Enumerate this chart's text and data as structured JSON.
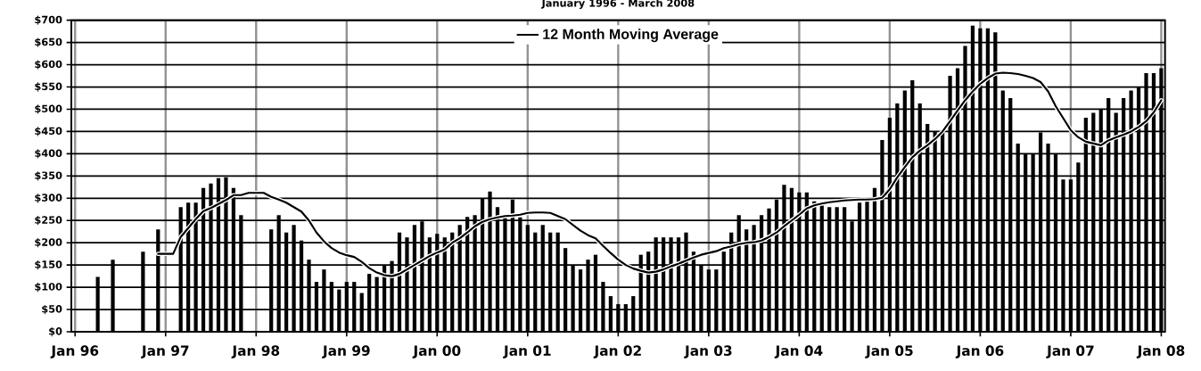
{
  "chart_data": {
    "type": "bar",
    "title": "January 1996 - March 2008",
    "categories": [
      "Jan 96",
      null,
      null,
      null,
      null,
      null,
      null,
      null,
      null,
      null,
      null,
      null,
      "Jan 97",
      null,
      null,
      null,
      null,
      null,
      null,
      null,
      null,
      null,
      null,
      null,
      "Jan 98",
      null,
      null,
      null,
      null,
      null,
      null,
      null,
      null,
      null,
      null,
      null,
      "Jan 99",
      null,
      null,
      null,
      null,
      null,
      null,
      null,
      null,
      null,
      null,
      null,
      "Jan 00",
      null,
      null,
      null,
      null,
      null,
      null,
      null,
      null,
      null,
      null,
      null,
      "Jan 01",
      null,
      null,
      null,
      null,
      null,
      null,
      null,
      null,
      null,
      null,
      null,
      "Jan 02",
      null,
      null,
      null,
      null,
      null,
      null,
      null,
      null,
      null,
      null,
      null,
      "Jan 03",
      null,
      null,
      null,
      null,
      null,
      null,
      null,
      null,
      null,
      null,
      null,
      "Jan 04",
      null,
      null,
      null,
      null,
      null,
      null,
      null,
      null,
      null,
      null,
      null,
      "Jan 05",
      null,
      null,
      null,
      null,
      null,
      null,
      null,
      null,
      null,
      null,
      null,
      "Jan 06",
      null,
      null,
      null,
      null,
      null,
      null,
      null,
      null,
      null,
      null,
      null,
      "Jan 07",
      null,
      null,
      null,
      null,
      null,
      null,
      null,
      null,
      null,
      null,
      null,
      "Jan 08"
    ],
    "series": [
      {
        "color": "#000000",
        "values": [
          null,
          null,
          null,
          123,
          null,
          162,
          null,
          null,
          null,
          180,
          null,
          230,
          null,
          null,
          280,
          290,
          290,
          323,
          333,
          345,
          347,
          323,
          262,
          null,
          null,
          null,
          230,
          262,
          223,
          240,
          205,
          162,
          112,
          140,
          112,
          95,
          112,
          112,
          87,
          130,
          123,
          149,
          159,
          223,
          212,
          240,
          248,
          212,
          220,
          212,
          223,
          240,
          258,
          262,
          300,
          315,
          280,
          262,
          297,
          257,
          240,
          223,
          240,
          223,
          223,
          188,
          150,
          140,
          162,
          173,
          112,
          80,
          62,
          62,
          80,
          173,
          180,
          212,
          212,
          212,
          212,
          223,
          180,
          150,
          140,
          140,
          180,
          223,
          262,
          230,
          240,
          262,
          277,
          297,
          330,
          323,
          313,
          313,
          293,
          290,
          280,
          280,
          280,
          248,
          290,
          295,
          323,
          431,
          481,
          513,
          542,
          565,
          513,
          467,
          450,
          450,
          575,
          592,
          642,
          688,
          682,
          682,
          673,
          542,
          525,
          423,
          400,
          400,
          448,
          423,
          400,
          342,
          342,
          380,
          481,
          492,
          500,
          525,
          492,
          525,
          542,
          550,
          581,
          581,
          592
        ]
      },
      {
        "type": "line",
        "name": "12 Month Moving Average",
        "color": "#000000",
        "values": [
          null,
          null,
          null,
          null,
          null,
          null,
          null,
          null,
          null,
          null,
          null,
          175,
          175,
          175,
          213,
          233,
          253,
          271,
          278,
          287,
          296,
          307,
          307,
          312,
          312,
          312,
          303,
          297,
          290,
          280,
          270,
          250,
          223,
          203,
          188,
          178,
          172,
          168,
          157,
          143,
          133,
          127,
          125,
          130,
          140,
          150,
          160,
          170,
          178,
          185,
          200,
          210,
          223,
          237,
          247,
          253,
          257,
          260,
          261,
          263,
          267,
          268,
          268,
          267,
          260,
          253,
          240,
          227,
          217,
          210,
          193,
          177,
          162,
          150,
          142,
          137,
          133,
          135,
          140,
          147,
          153,
          160,
          167,
          173,
          177,
          181,
          188,
          192,
          197,
          200,
          201,
          205,
          213,
          223,
          237,
          250,
          263,
          277,
          284,
          288,
          291,
          293,
          295,
          296,
          297,
          297,
          298,
          301,
          320,
          347,
          370,
          392,
          407,
          419,
          433,
          450,
          473,
          497,
          520,
          540,
          557,
          570,
          580,
          582,
          581,
          579,
          575,
          570,
          561,
          540,
          507,
          480,
          453,
          437,
          427,
          423,
          419,
          430,
          437,
          443,
          450,
          460,
          473,
          493,
          520
        ]
      }
    ],
    "ylim": [
      0,
      700
    ],
    "yticks": [
      {
        "value": 0,
        "label": "$0"
      },
      {
        "value": 50,
        "label": "$50"
      },
      {
        "value": 100,
        "label": "$100"
      },
      {
        "value": 150,
        "label": "$150"
      },
      {
        "value": 200,
        "label": "$200"
      },
      {
        "value": 250,
        "label": "$250"
      },
      {
        "value": 300,
        "label": "$300"
      },
      {
        "value": 350,
        "label": "$350"
      },
      {
        "value": 400,
        "label": "$400"
      },
      {
        "value": 450,
        "label": "$450"
      },
      {
        "value": 500,
        "label": "$500"
      },
      {
        "value": 550,
        "label": "$550"
      },
      {
        "value": 600,
        "label": "$600"
      },
      {
        "value": 650,
        "label": "$650"
      },
      {
        "value": 700,
        "label": "$700"
      }
    ],
    "grid": true,
    "legend": "top",
    "marker": "none",
    "line_style": "solid"
  }
}
